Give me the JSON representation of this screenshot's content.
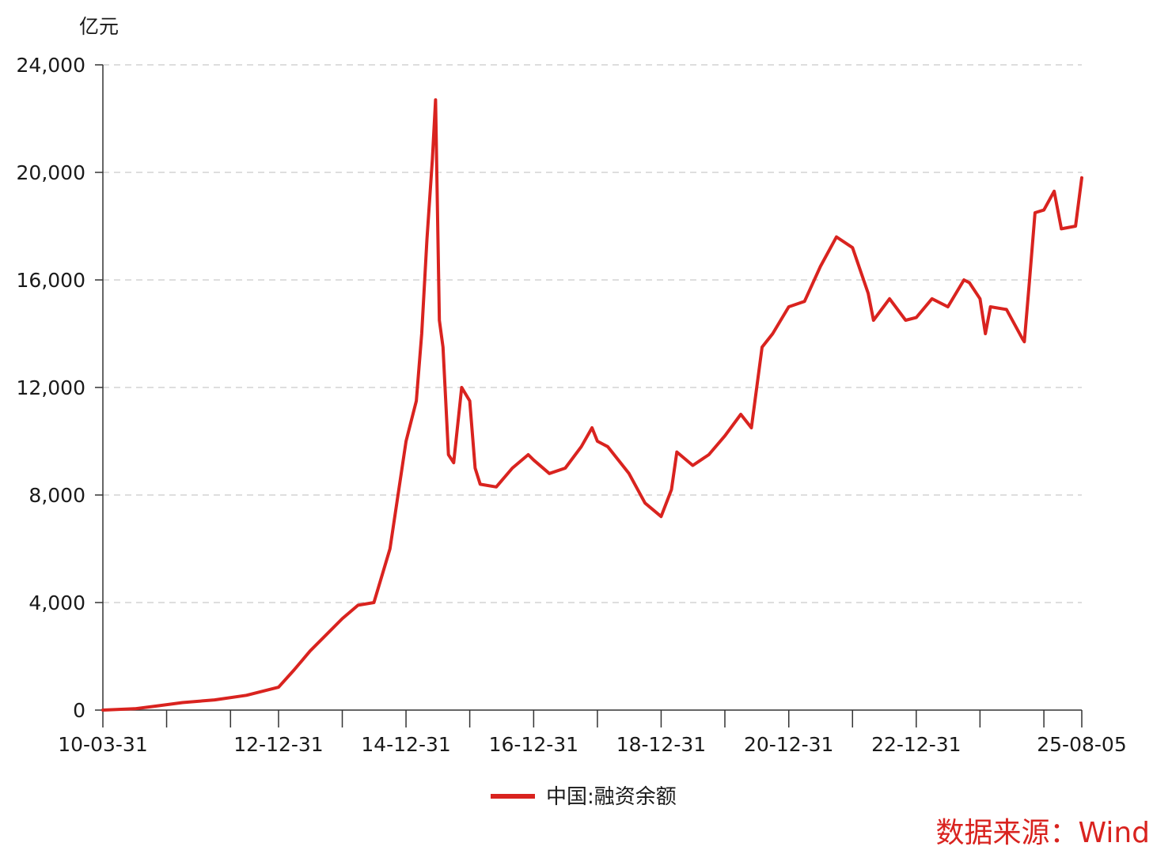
{
  "chart_data": {
    "type": "line",
    "unit_label": "亿元",
    "ylim": [
      0,
      24000
    ],
    "y_ticks": [
      0,
      4000,
      8000,
      12000,
      16000,
      20000,
      24000
    ],
    "y_tick_labels": [
      "0",
      "4,000",
      "8,000",
      "12,000",
      "16,000",
      "20,000",
      "24,000"
    ],
    "x_range": [
      "2010-03-31",
      "2025-08-05"
    ],
    "x_tick_dates": [
      "2010-03-31",
      "2011-03-31",
      "2012-03-31",
      "2012-12-31",
      "2013-12-31",
      "2014-12-31",
      "2015-12-31",
      "2016-12-31",
      "2017-12-31",
      "2018-12-31",
      "2019-12-31",
      "2020-12-31",
      "2021-12-31",
      "2022-12-31",
      "2023-12-31",
      "2024-12-31",
      "2025-08-05"
    ],
    "x_labels": [
      {
        "date": "2010-03-31",
        "text": "10-03-31"
      },
      {
        "date": "2012-12-31",
        "text": "12-12-31"
      },
      {
        "date": "2014-12-31",
        "text": "14-12-31"
      },
      {
        "date": "2016-12-31",
        "text": "16-12-31"
      },
      {
        "date": "2018-12-31",
        "text": "18-12-31"
      },
      {
        "date": "2020-12-31",
        "text": "20-12-31"
      },
      {
        "date": "2022-12-31",
        "text": "22-12-31"
      },
      {
        "date": "2025-08-05",
        "text": "25-08-05"
      }
    ],
    "grid": true,
    "legend_position": "bottom",
    "series": [
      {
        "name": "中国:融资余额",
        "color": "#d9231f",
        "points": [
          [
            "2010-03-31",
            0
          ],
          [
            "2010-09-30",
            50
          ],
          [
            "2011-01-31",
            150
          ],
          [
            "2011-06-30",
            280
          ],
          [
            "2011-12-31",
            380
          ],
          [
            "2012-06-30",
            550
          ],
          [
            "2012-12-31",
            850
          ],
          [
            "2013-03-31",
            1500
          ],
          [
            "2013-06-30",
            2200
          ],
          [
            "2013-09-30",
            2800
          ],
          [
            "2013-12-31",
            3400
          ],
          [
            "2014-03-31",
            3900
          ],
          [
            "2014-06-30",
            4000
          ],
          [
            "2014-09-30",
            6000
          ],
          [
            "2014-12-31",
            10000
          ],
          [
            "2015-02-28",
            11500
          ],
          [
            "2015-03-31",
            14000
          ],
          [
            "2015-04-30",
            17500
          ],
          [
            "2015-05-31",
            20500
          ],
          [
            "2015-06-18",
            22700
          ],
          [
            "2015-07-10",
            14500
          ],
          [
            "2015-07-31",
            13500
          ],
          [
            "2015-08-31",
            9500
          ],
          [
            "2015-09-30",
            9200
          ],
          [
            "2015-11-15",
            12000
          ],
          [
            "2015-12-31",
            11500
          ],
          [
            "2016-01-31",
            9000
          ],
          [
            "2016-02-29",
            8400
          ],
          [
            "2016-05-31",
            8300
          ],
          [
            "2016-08-31",
            9000
          ],
          [
            "2016-11-30",
            9500
          ],
          [
            "2016-12-31",
            9300
          ],
          [
            "2017-03-31",
            8800
          ],
          [
            "2017-06-30",
            9000
          ],
          [
            "2017-09-30",
            9800
          ],
          [
            "2017-11-30",
            10500
          ],
          [
            "2017-12-31",
            10000
          ],
          [
            "2018-02-28",
            9800
          ],
          [
            "2018-06-30",
            8800
          ],
          [
            "2018-09-30",
            7700
          ],
          [
            "2018-12-31",
            7200
          ],
          [
            "2019-02-28",
            8200
          ],
          [
            "2019-03-31",
            9600
          ],
          [
            "2019-06-30",
            9100
          ],
          [
            "2019-09-30",
            9500
          ],
          [
            "2019-12-31",
            10200
          ],
          [
            "2020-03-31",
            11000
          ],
          [
            "2020-05-31",
            10500
          ],
          [
            "2020-07-31",
            13500
          ],
          [
            "2020-09-30",
            14000
          ],
          [
            "2020-12-31",
            15000
          ],
          [
            "2021-03-31",
            15200
          ],
          [
            "2021-06-30",
            16500
          ],
          [
            "2021-09-30",
            17600
          ],
          [
            "2021-12-31",
            17200
          ],
          [
            "2022-03-31",
            15500
          ],
          [
            "2022-04-30",
            14500
          ],
          [
            "2022-07-31",
            15300
          ],
          [
            "2022-10-31",
            14500
          ],
          [
            "2022-12-31",
            14600
          ],
          [
            "2023-03-31",
            15300
          ],
          [
            "2023-06-30",
            15000
          ],
          [
            "2023-09-30",
            16000
          ],
          [
            "2023-10-31",
            15900
          ],
          [
            "2023-12-31",
            15300
          ],
          [
            "2024-01-31",
            14000
          ],
          [
            "2024-02-29",
            15000
          ],
          [
            "2024-05-31",
            14900
          ],
          [
            "2024-08-31",
            13800
          ],
          [
            "2024-09-10",
            13700
          ],
          [
            "2024-10-10",
            16000
          ],
          [
            "2024-11-10",
            18500
          ],
          [
            "2024-12-31",
            18600
          ],
          [
            "2025-02-28",
            19300
          ],
          [
            "2025-04-10",
            17900
          ],
          [
            "2025-06-30",
            18000
          ],
          [
            "2025-08-05",
            19800
          ]
        ]
      }
    ]
  },
  "source_note": "数据来源：Wind"
}
